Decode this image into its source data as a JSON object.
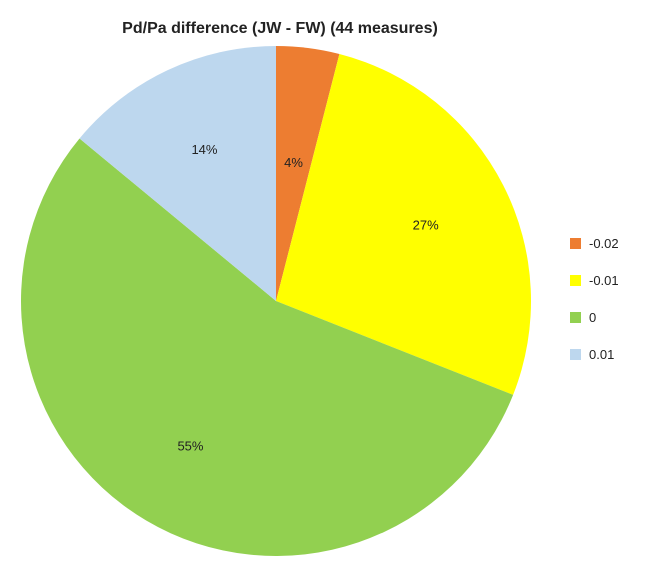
{
  "chart_data": {
    "type": "pie",
    "title": "Pd/Pa difference (JW - FW) (44 measures)",
    "categories": [
      "-0.02",
      "-0.01",
      "0",
      "0.01"
    ],
    "values": [
      4,
      27,
      55,
      14
    ],
    "labels": [
      "4%",
      "27%",
      "55%",
      "14%"
    ],
    "colors": [
      "#ED7D31",
      "#FFFF00",
      "#92D050",
      "#BDD7EE"
    ],
    "start_angle_deg": 0,
    "direction": "clockwise",
    "legend_position": "right"
  }
}
